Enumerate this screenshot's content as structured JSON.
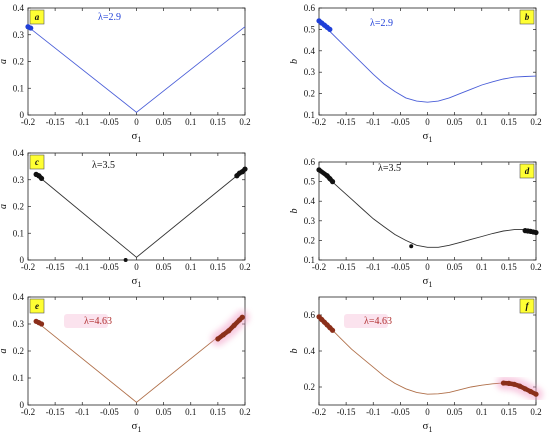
{
  "chart_data": [
    {
      "type": "line",
      "panel": "a",
      "annotation": "λ=2.9",
      "annotation_color": "#1f3fd8",
      "xlabel": "σ",
      "xlabel_sub": "1",
      "ylabel": "a",
      "xlim": [
        -0.2,
        0.2
      ],
      "ylim": [
        0,
        0.4
      ],
      "xticks": [
        "-0.2",
        "-0.15",
        "-0.1",
        "-0.05",
        "0",
        "0.05",
        "0.1",
        "0.15",
        "0.2"
      ],
      "yticks": [
        "0",
        "0.1",
        "0.2",
        "0.3",
        "0.4"
      ],
      "series": [
        {
          "color": "#4a5ed8",
          "x": [
            -0.2,
            0,
            0.2
          ],
          "y": [
            0.33,
            0.01,
            0.33
          ]
        }
      ],
      "highlights": [
        {
          "color": "#1f3fd8",
          "x": [
            -0.2,
            -0.195
          ],
          "y": [
            0.33,
            0.325
          ],
          "blur": false
        }
      ],
      "isolated_points": []
    },
    {
      "type": "line",
      "panel": "b",
      "annotation": "λ=2.9",
      "annotation_color": "#1f3fd8",
      "xlabel": "σ",
      "xlabel_sub": "1",
      "ylabel": "b",
      "xlim": [
        -0.2,
        0.2
      ],
      "ylim": [
        0.1,
        0.6
      ],
      "xticks": [
        "-0.2",
        "-0.15",
        "-0.1",
        "-0.05",
        "0",
        "0.05",
        "0.1",
        "0.15",
        "0.2"
      ],
      "yticks": [
        "0.1",
        "0.2",
        "0.3",
        "0.4",
        "0.5",
        "0.6"
      ],
      "series": [
        {
          "color": "#4a5ed8",
          "x": [
            -0.2,
            -0.18,
            -0.16,
            -0.14,
            -0.12,
            -0.1,
            -0.08,
            -0.06,
            -0.04,
            -0.02,
            0,
            0.02,
            0.04,
            0.06,
            0.08,
            0.1,
            0.12,
            0.14,
            0.16,
            0.18,
            0.2
          ],
          "y": [
            0.54,
            0.49,
            0.44,
            0.39,
            0.34,
            0.29,
            0.245,
            0.21,
            0.18,
            0.165,
            0.16,
            0.165,
            0.18,
            0.2,
            0.22,
            0.24,
            0.255,
            0.268,
            0.277,
            0.28,
            0.282
          ]
        }
      ],
      "highlights": [
        {
          "color": "#1f3fd8",
          "x": [
            -0.2,
            -0.195,
            -0.19,
            -0.185,
            -0.18
          ],
          "y": [
            0.54,
            0.53,
            0.52,
            0.51,
            0.5
          ],
          "blur": false
        }
      ],
      "isolated_points": []
    },
    {
      "type": "line",
      "panel": "c",
      "annotation": "λ=3.5",
      "annotation_color": "#111111",
      "xlabel": "σ",
      "xlabel_sub": "1",
      "ylabel": "a",
      "xlim": [
        -0.2,
        0.2
      ],
      "ylim": [
        0,
        0.4
      ],
      "xticks": [
        "-0.2",
        "-0.15",
        "-0.1",
        "-0.05",
        "0",
        "0.05",
        "0.1",
        "0.15",
        "0.2"
      ],
      "yticks": [
        "0",
        "0.1",
        "0.2",
        "0.3",
        "0.4"
      ],
      "series": [
        {
          "color": "#333333",
          "x": [
            -0.185,
            0,
            0.2
          ],
          "y": [
            0.32,
            0.01,
            0.34
          ]
        }
      ],
      "highlights": [
        {
          "color": "#111111",
          "x": [
            -0.185,
            -0.18,
            -0.175
          ],
          "y": [
            0.32,
            0.315,
            0.305
          ],
          "blur": false
        },
        {
          "color": "#111111",
          "x": [
            0.185,
            0.19,
            0.195,
            0.2
          ],
          "y": [
            0.315,
            0.325,
            0.33,
            0.34
          ],
          "blur": false
        }
      ],
      "isolated_points": [
        {
          "x": -0.02,
          "y": 0.0,
          "color": "#111111"
        }
      ]
    },
    {
      "type": "line",
      "panel": "d",
      "annotation": "λ=3.5",
      "annotation_color": "#111111",
      "xlabel": "σ",
      "xlabel_sub": "1",
      "ylabel": "b",
      "xlim": [
        -0.2,
        0.2
      ],
      "ylim": [
        0.1,
        0.6
      ],
      "xticks": [
        "-0.2",
        "-0.15",
        "-0.1",
        "-0.05",
        "0",
        "0.05",
        "0.1",
        "0.15",
        "0.2"
      ],
      "yticks": [
        "0.1",
        "0.2",
        "0.3",
        "0.4",
        "0.5",
        "0.6"
      ],
      "series": [
        {
          "color": "#333333",
          "x": [
            -0.2,
            -0.18,
            -0.16,
            -0.14,
            -0.12,
            -0.1,
            -0.08,
            -0.06,
            -0.04,
            -0.02,
            0,
            0.02,
            0.04,
            0.06,
            0.08,
            0.1,
            0.12,
            0.14,
            0.16,
            0.18,
            0.2
          ],
          "y": [
            0.56,
            0.51,
            0.46,
            0.41,
            0.36,
            0.31,
            0.27,
            0.23,
            0.2,
            0.175,
            0.165,
            0.165,
            0.175,
            0.19,
            0.205,
            0.22,
            0.235,
            0.248,
            0.255,
            0.255,
            0.24
          ]
        }
      ],
      "highlights": [
        {
          "color": "#111111",
          "x": [
            -0.2,
            -0.185,
            -0.18,
            -0.175
          ],
          "y": [
            0.56,
            0.53,
            0.515,
            0.5
          ],
          "blur": false
        },
        {
          "color": "#111111",
          "x": [
            0.18,
            0.185,
            0.19,
            0.195,
            0.2
          ],
          "y": [
            0.25,
            0.248,
            0.246,
            0.243,
            0.24
          ],
          "blur": false
        }
      ],
      "isolated_points": [
        {
          "x": -0.03,
          "y": 0.17,
          "color": "#111111"
        }
      ]
    },
    {
      "type": "line",
      "panel": "e",
      "annotation": "λ=4.63",
      "annotation_color": "#b03030",
      "xlabel": "σ",
      "xlabel_sub": "1",
      "ylabel": "a",
      "xlim": [
        -0.2,
        0.2
      ],
      "ylim": [
        0,
        0.4
      ],
      "xticks": [
        "-0.2",
        "-0.15",
        "-0.1",
        "-0.05",
        "0",
        "0.05",
        "0.1",
        "0.15",
        "0.2"
      ],
      "yticks": [
        "0",
        "0.1",
        "0.2",
        "0.3",
        "0.4"
      ],
      "series": [
        {
          "color": "#b0704a",
          "x": [
            -0.185,
            0,
            0.195
          ],
          "y": [
            0.31,
            0.01,
            0.325
          ]
        }
      ],
      "highlights": [
        {
          "color": "#8b2f1a",
          "x": [
            -0.185,
            -0.18,
            -0.175
          ],
          "y": [
            0.31,
            0.305,
            0.3
          ],
          "blur": false
        },
        {
          "color": "#8b2f1a",
          "x": [
            0.15,
            0.16,
            0.17,
            0.18,
            0.19,
            0.195
          ],
          "y": [
            0.245,
            0.26,
            0.275,
            0.295,
            0.315,
            0.325
          ],
          "blur": true
        }
      ],
      "isolated_points": []
    },
    {
      "type": "line",
      "panel": "f",
      "annotation": "λ=4.63",
      "annotation_color": "#b03030",
      "xlabel": "σ",
      "xlabel_sub": "1",
      "ylabel": "b",
      "xlim": [
        -0.2,
        0.2
      ],
      "ylim": [
        0.1,
        0.7
      ],
      "xticks": [
        "-0.2",
        "-0.15",
        "-0.1",
        "-0.05",
        "0",
        "0.05",
        "0.1",
        "0.15",
        "0.2"
      ],
      "yticks": [
        "0.2",
        "0.4",
        "0.6"
      ],
      "series": [
        {
          "color": "#b0704a",
          "x": [
            -0.2,
            -0.18,
            -0.16,
            -0.14,
            -0.12,
            -0.1,
            -0.08,
            -0.06,
            -0.04,
            -0.02,
            0,
            0.02,
            0.04,
            0.06,
            0.08,
            0.1,
            0.12,
            0.14,
            0.16,
            0.18,
            0.2
          ],
          "y": [
            0.59,
            0.53,
            0.47,
            0.41,
            0.36,
            0.31,
            0.26,
            0.22,
            0.19,
            0.17,
            0.16,
            0.162,
            0.17,
            0.185,
            0.2,
            0.21,
            0.218,
            0.222,
            0.215,
            0.19,
            0.16
          ]
        }
      ],
      "highlights": [
        {
          "color": "#8b2f1a",
          "x": [
            -0.2,
            -0.195,
            -0.19,
            -0.185,
            -0.18,
            -0.175
          ],
          "y": [
            0.59,
            0.575,
            0.56,
            0.545,
            0.53,
            0.515
          ],
          "blur": false
        },
        {
          "color": "#8b2f1a",
          "x": [
            0.14,
            0.15,
            0.16,
            0.17,
            0.18,
            0.19,
            0.2
          ],
          "y": [
            0.222,
            0.22,
            0.215,
            0.205,
            0.19,
            0.175,
            0.16
          ],
          "blur": true
        }
      ],
      "isolated_points": []
    }
  ]
}
